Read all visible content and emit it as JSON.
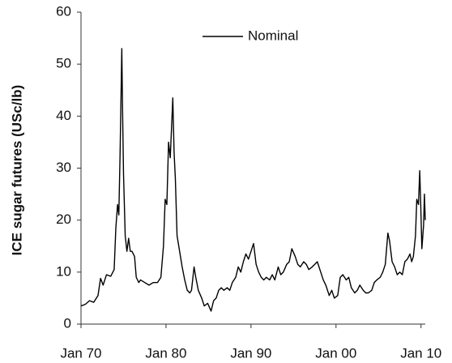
{
  "chart_data": {
    "type": "line",
    "y_label": "ICE sugar futures (USc/lb)",
    "x": [
      1970.0,
      1970.5,
      1971.0,
      1971.5,
      1972.0,
      1972.3,
      1972.6,
      1973.0,
      1973.5,
      1973.9,
      1974.1,
      1974.3,
      1974.45,
      1974.6,
      1974.8,
      1974.9,
      1975.0,
      1975.2,
      1975.4,
      1975.6,
      1975.8,
      1976.0,
      1976.3,
      1976.5,
      1976.8,
      1977.0,
      1977.5,
      1978.0,
      1978.5,
      1979.0,
      1979.4,
      1979.7,
      1979.9,
      1980.1,
      1980.3,
      1980.5,
      1980.8,
      1980.95,
      1981.1,
      1981.3,
      1981.6,
      1981.9,
      1982.2,
      1982.5,
      1982.8,
      1983.0,
      1983.3,
      1983.5,
      1983.8,
      1984.2,
      1984.5,
      1984.9,
      1985.3,
      1985.6,
      1985.9,
      1986.2,
      1986.5,
      1986.8,
      1987.2,
      1987.5,
      1987.8,
      1988.2,
      1988.5,
      1988.8,
      1989.1,
      1989.4,
      1989.7,
      1990.0,
      1990.3,
      1990.6,
      1990.9,
      1991.2,
      1991.5,
      1991.8,
      1992.2,
      1992.5,
      1992.8,
      1993.2,
      1993.5,
      1993.8,
      1994.2,
      1994.5,
      1994.8,
      1995.2,
      1995.5,
      1995.8,
      1996.2,
      1996.5,
      1996.8,
      1997.2,
      1997.5,
      1997.8,
      1998.2,
      1998.5,
      1998.8,
      1999.2,
      1999.5,
      1999.8,
      2000.2,
      2000.5,
      2000.8,
      2001.2,
      2001.5,
      2001.8,
      2002.2,
      2002.5,
      2002.8,
      2003.2,
      2003.5,
      2003.8,
      2004.2,
      2004.5,
      2004.8,
      2005.2,
      2005.5,
      2005.8,
      2006.1,
      2006.3,
      2006.6,
      2006.9,
      2007.2,
      2007.5,
      2007.8,
      2008.1,
      2008.4,
      2008.7,
      2008.9,
      2009.1,
      2009.35,
      2009.5,
      2009.7,
      2009.85,
      2009.95,
      2010.1,
      2010.3,
      2010.4,
      2010.5
    ],
    "series": [
      {
        "name": "Nominal",
        "color": "#000000",
        "values": [
          3.5,
          3.8,
          4.5,
          4.2,
          5.5,
          8.8,
          7.5,
          9.5,
          9.2,
          10.5,
          18.5,
          23,
          21,
          33,
          53,
          40,
          29,
          17,
          14,
          16.5,
          14,
          14,
          13,
          9,
          8,
          8.5,
          8,
          7.5,
          8,
          8,
          9,
          15,
          24,
          23,
          35,
          32,
          43.5,
          33,
          28,
          17,
          14,
          11,
          8.5,
          6.5,
          6,
          6.5,
          11,
          9,
          6.5,
          5,
          3.5,
          4,
          2.5,
          4.5,
          5,
          6.5,
          7,
          6.5,
          7,
          6.5,
          8,
          9,
          11,
          10,
          12,
          13.5,
          12.5,
          14,
          15.5,
          11.5,
          10,
          9,
          8.5,
          9,
          8.5,
          9.5,
          8.5,
          11,
          9.5,
          10,
          11.5,
          12,
          14.5,
          13,
          11.5,
          11,
          12,
          11.5,
          10.5,
          11,
          11.5,
          12,
          10,
          8.5,
          7.5,
          5.5,
          6.5,
          5,
          5.5,
          9,
          9.5,
          8.5,
          9,
          7,
          6,
          6.5,
          7.5,
          6.5,
          6,
          6,
          6.5,
          8,
          8.5,
          9,
          10,
          11.5,
          17.5,
          16,
          12,
          11,
          9.5,
          10,
          9.5,
          12,
          12.5,
          13.5,
          12,
          13,
          17,
          24,
          23,
          29.5,
          24,
          14.5,
          19,
          25,
          20
        ]
      }
    ],
    "xlim": [
      1970,
      2010.5
    ],
    "xticks": [
      {
        "value": 1970,
        "label": "Jan 70"
      },
      {
        "value": 1980,
        "label": "Jan 80"
      },
      {
        "value": 1990,
        "label": "Jan 90"
      },
      {
        "value": 2000,
        "label": "Jan 00"
      },
      {
        "value": 2010,
        "label": "Jan 10"
      }
    ],
    "ylim": [
      0,
      60
    ],
    "yticks": [
      0,
      10,
      20,
      30,
      40,
      50,
      60
    ],
    "legend": "top"
  }
}
